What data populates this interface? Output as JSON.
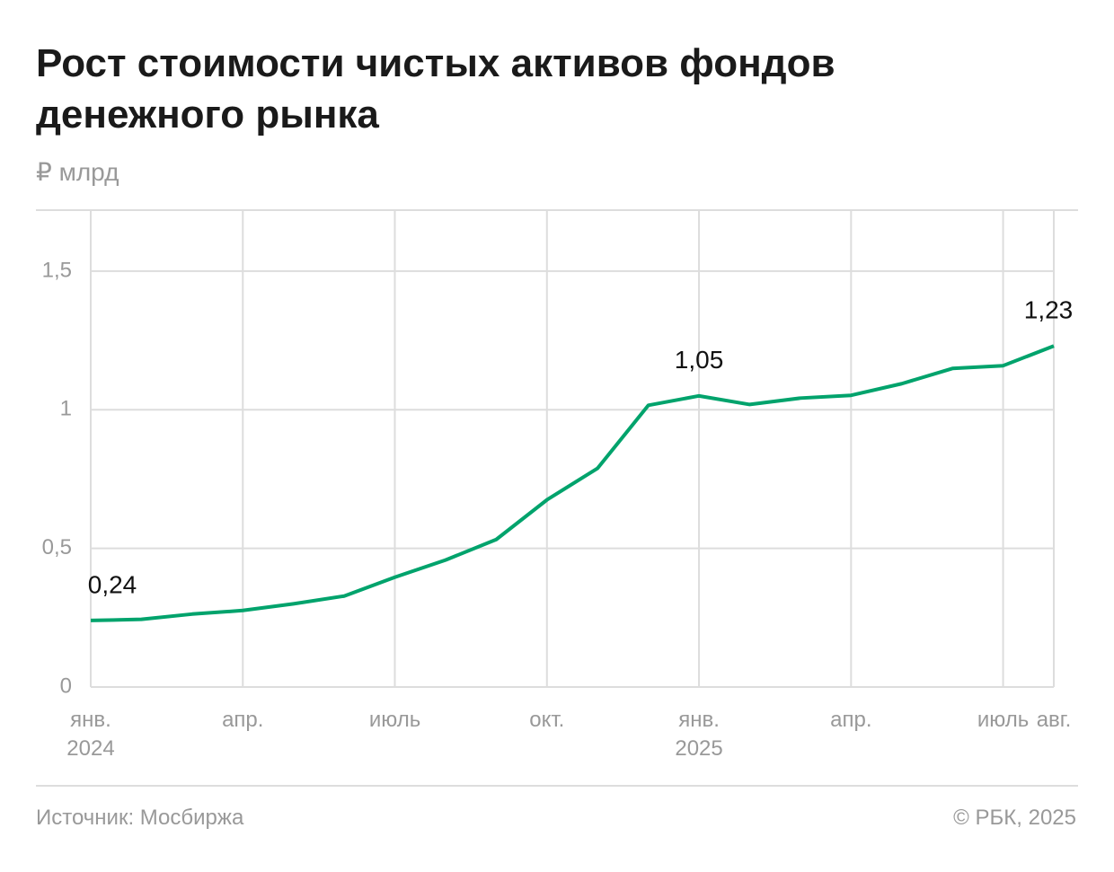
{
  "chart_data": {
    "type": "line",
    "title": "Рост стоимости чистых активов фондов денежного рынка",
    "subtitle": "₽ млрд",
    "source": "Источник: Мосбиржа",
    "credit": "© РБК, 2025",
    "categories": [
      "янв.\n2024",
      null,
      null,
      "апр.",
      null,
      null,
      "июль",
      null,
      null,
      "окт.",
      null,
      null,
      "янв.\n2025",
      null,
      null,
      "апр.",
      null,
      null,
      "июль",
      "авг."
    ],
    "values": [
      0.24,
      0.244,
      0.263,
      0.276,
      0.3,
      0.328,
      0.396,
      0.458,
      0.532,
      0.675,
      0.789,
      1.016,
      1.05,
      1.019,
      1.042,
      1.052,
      1.094,
      1.149,
      1.159,
      1.23
    ],
    "value_labels": [
      "0,24",
      null,
      null,
      null,
      null,
      null,
      null,
      null,
      null,
      null,
      null,
      null,
      "1,05",
      null,
      null,
      null,
      null,
      null,
      null,
      "1,23"
    ],
    "color": "#00a36c",
    "ylim": [
      0,
      1.72
    ],
    "yticks": [
      0,
      {
        "value": 0.5,
        "label": "0,5"
      },
      1,
      {
        "value": 1.5,
        "label": "1,5"
      }
    ],
    "grid": true
  }
}
